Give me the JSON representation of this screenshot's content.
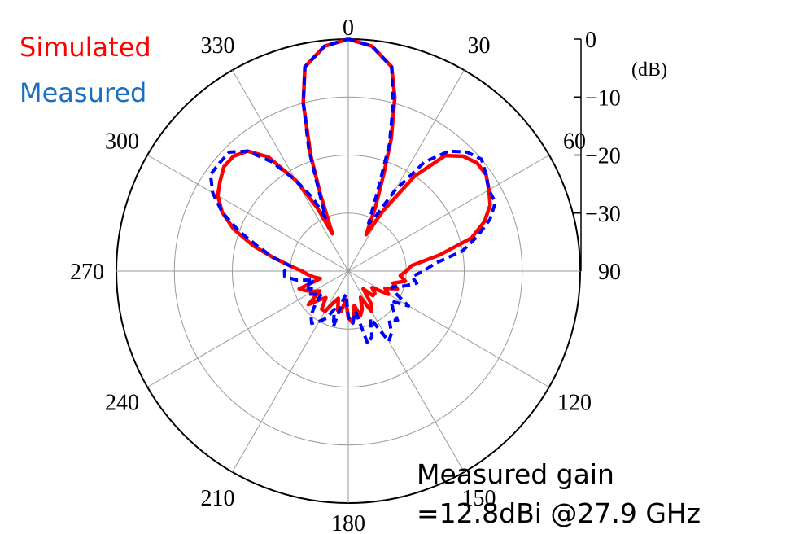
{
  "chart_data": {
    "type": "line",
    "subtype": "polar",
    "title": "",
    "angle_ticks": [
      "0",
      "30",
      "60",
      "90",
      "120",
      "150",
      "180",
      "210",
      "240",
      "270",
      "300",
      "330"
    ],
    "radial_ticks": [
      "0",
      "−10",
      "−20",
      "−30"
    ],
    "radial_unit": "(dB)",
    "rlim": [
      -40,
      0
    ],
    "angle_direction": "clockwise",
    "zero_location": "top",
    "grid": true,
    "legend_position": "top-left",
    "series": [
      {
        "name": "Simulated",
        "color": "#ff0000",
        "line_style": "solid",
        "angles": [
          0,
          6,
          12,
          15,
          18,
          20,
          23,
          26,
          30,
          35,
          40,
          45,
          50,
          55,
          60,
          65,
          70,
          75,
          80,
          85,
          90,
          95,
          100,
          105,
          110,
          115,
          120,
          125,
          130,
          135,
          140,
          145,
          150,
          155,
          160,
          165,
          170,
          175,
          180,
          185,
          190,
          195,
          200,
          205,
          210,
          215,
          220,
          225,
          230,
          235,
          240,
          245,
          250,
          255,
          260,
          265,
          270,
          275,
          280,
          285,
          290,
          295,
          300,
          305,
          310,
          315,
          320,
          325,
          330,
          334,
          337,
          340,
          342,
          345,
          348,
          354
        ],
        "values": [
          0,
          -1,
          -4,
          -9,
          -16,
          -22,
          -28,
          -33,
          -28,
          -20,
          -14,
          -12,
          -11,
          -11,
          -12,
          -13,
          -15,
          -18,
          -24,
          -29,
          -30,
          -31,
          -30,
          -32,
          -31,
          -33,
          -32,
          -35,
          -34,
          -34,
          -36,
          -33,
          -32,
          -35,
          -33,
          -32,
          -34,
          -31,
          -32,
          -35,
          -33,
          -33,
          -35,
          -34,
          -32,
          -32,
          -34,
          -33,
          -31,
          -34,
          -33,
          -32,
          -31,
          -35,
          -34,
          -33,
          -32,
          -30,
          -27,
          -23,
          -19,
          -16,
          -14,
          -13,
          -12,
          -12,
          -13,
          -16,
          -22,
          -28,
          -33,
          -26,
          -19,
          -10,
          -4,
          -1
        ]
      },
      {
        "name": "Measured",
        "color": "#0000ff",
        "line_style": "dashed",
        "angles": [
          0,
          6,
          12,
          15,
          18,
          20,
          23,
          26,
          30,
          35,
          40,
          45,
          50,
          55,
          60,
          65,
          70,
          75,
          80,
          85,
          90,
          95,
          100,
          105,
          110,
          115,
          120,
          125,
          130,
          135,
          140,
          145,
          150,
          155,
          160,
          165,
          170,
          175,
          180,
          185,
          190,
          195,
          200,
          205,
          210,
          215,
          220,
          225,
          230,
          235,
          240,
          245,
          250,
          255,
          260,
          265,
          270,
          275,
          280,
          285,
          290,
          295,
          300,
          305,
          310,
          315,
          320,
          325,
          330,
          334,
          337,
          340,
          342,
          345,
          348,
          354
        ],
        "values": [
          0,
          -1,
          -4,
          -10,
          -17,
          -25,
          -31,
          -30,
          -24,
          -17,
          -13,
          -11,
          -10,
          -11,
          -12,
          -12,
          -14,
          -17,
          -20,
          -25,
          -27,
          -29,
          -28,
          -30,
          -32,
          -31,
          -28,
          -31,
          -30,
          -28,
          -29,
          -27,
          -26,
          -31,
          -28,
          -27,
          -33,
          -31,
          -32,
          -36,
          -35,
          -30,
          -33,
          -31,
          -30,
          -29,
          -30,
          -32,
          -34,
          -33,
          -32,
          -33,
          -32,
          -34,
          -31,
          -29,
          -29,
          -30,
          -27,
          -24,
          -20,
          -16,
          -13,
          -11,
          -11,
          -11,
          -13,
          -17,
          -22,
          -26,
          -30,
          -25,
          -18,
          -10,
          -4,
          -1
        ]
      }
    ]
  },
  "annotation": {
    "line1": "Measured gain",
    "line2": "=12.8dBi @27.9 GHz"
  }
}
